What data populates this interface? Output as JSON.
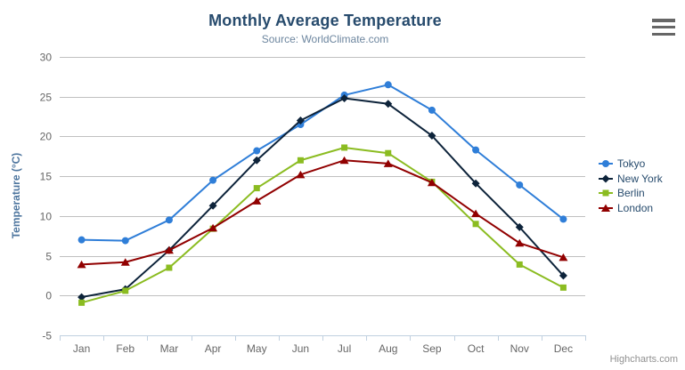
{
  "chart_data": {
    "type": "line",
    "title": "Monthly Average Temperature",
    "subtitle": "Source: WorldClimate.com",
    "credits": "Highcharts.com",
    "categories": [
      "Jan",
      "Feb",
      "Mar",
      "Apr",
      "May",
      "Jun",
      "Jul",
      "Aug",
      "Sep",
      "Oct",
      "Nov",
      "Dec"
    ],
    "series": [
      {
        "name": "Tokyo",
        "color": "#2f7ed8",
        "marker": "circle",
        "values": [
          7.0,
          6.9,
          9.5,
          14.5,
          18.2,
          21.5,
          25.2,
          26.5,
          23.3,
          18.3,
          13.9,
          9.6
        ]
      },
      {
        "name": "New York",
        "color": "#0d233a",
        "marker": "diamond",
        "values": [
          -0.2,
          0.8,
          5.7,
          11.3,
          17.0,
          22.0,
          24.8,
          24.1,
          20.1,
          14.1,
          8.6,
          2.5
        ]
      },
      {
        "name": "Berlin",
        "color": "#8bbc21",
        "marker": "square",
        "values": [
          -0.9,
          0.6,
          3.5,
          8.4,
          13.5,
          17.0,
          18.6,
          17.9,
          14.3,
          9.0,
          3.9,
          1.0
        ]
      },
      {
        "name": "London",
        "color": "#910000",
        "marker": "triangle",
        "values": [
          3.9,
          4.2,
          5.7,
          8.5,
          11.9,
          15.2,
          17.0,
          16.6,
          14.2,
          10.3,
          6.6,
          4.8
        ]
      }
    ],
    "xlabel": "",
    "ylabel": "Temperature (°C)",
    "ylim": [
      -5,
      30
    ],
    "ytick_step": 5,
    "grid": true,
    "grid_color": "#c0c0c0",
    "axis_line_color": "#c0d0e0",
    "legend_position": "right"
  }
}
